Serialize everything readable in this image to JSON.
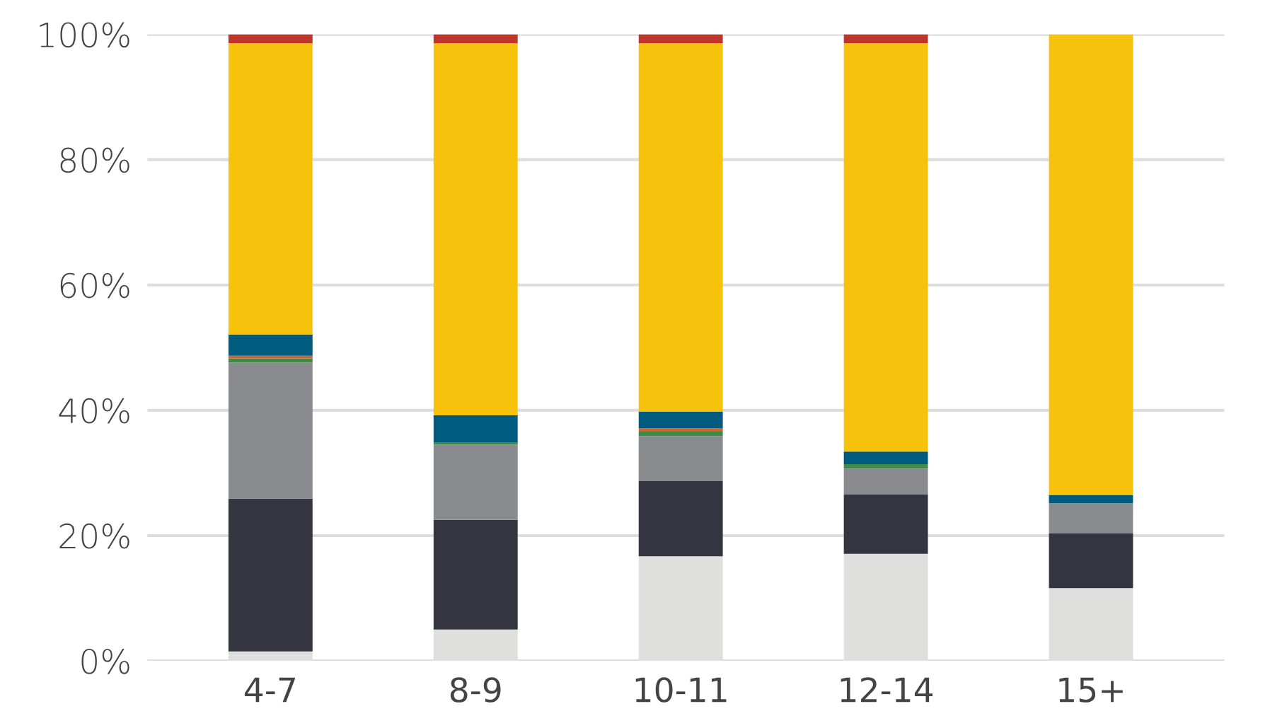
{
  "chart_data": {
    "type": "bar",
    "stacked": true,
    "categories": [
      "4-7",
      "8-9",
      "10-11",
      "12-14",
      "15+"
    ],
    "series": [
      {
        "color": "#dfe0de",
        "values": [
          1.5,
          5.0,
          16.7,
          17.1,
          11.6
        ]
      },
      {
        "color": "#343541",
        "values": [
          24.4,
          17.5,
          12.0,
          9.5,
          8.8
        ]
      },
      {
        "color": "#898b8f",
        "values": [
          21.7,
          12.0,
          7.2,
          4.1,
          4.8
        ]
      },
      {
        "color": "#3f8a45",
        "values": [
          0.7,
          0.4,
          0.7,
          0.7,
          0
        ]
      },
      {
        "color": "#d6622a",
        "values": [
          0.4,
          0,
          0.5,
          0,
          0
        ]
      },
      {
        "color": "#005b7f",
        "values": [
          3.4,
          4.3,
          2.7,
          2.0,
          1.3
        ]
      },
      {
        "color": "#f7c20c",
        "values": [
          46.5,
          59.4,
          58.8,
          65.2,
          73.5
        ]
      },
      {
        "color": "#c0352b",
        "values": [
          1.4,
          1.4,
          1.4,
          1.4,
          0
        ]
      }
    ],
    "ylim": [
      0,
      100
    ],
    "yticks": [
      {
        "value": 0,
        "label": "0%"
      },
      {
        "value": 20,
        "label": "20%"
      },
      {
        "value": 40,
        "label": "40%"
      },
      {
        "value": 60,
        "label": "60%"
      },
      {
        "value": 80,
        "label": "80%"
      },
      {
        "value": 100,
        "label": "100%"
      }
    ],
    "grid": "y"
  }
}
